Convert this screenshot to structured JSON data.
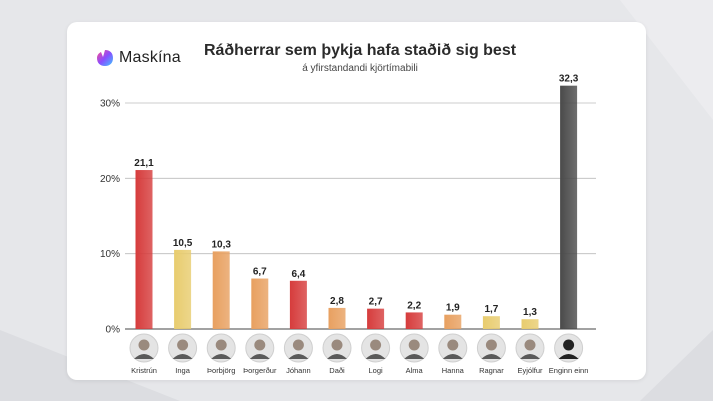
{
  "header": {
    "brand": "Maskína",
    "title": "Ráðherrar sem þykja hafa staðið sig best",
    "subtitle": "á yfirstandandi kjörtímabili"
  },
  "chart_data": {
    "type": "bar",
    "title": "Ráðherrar sem þykja hafa staðið sig best",
    "subtitle": "á yfirstandandi kjörtímabili",
    "xlabel": "",
    "ylabel": "",
    "ylim": [
      0,
      30
    ],
    "yticks": [
      0,
      10,
      20,
      30
    ],
    "ytick_labels": [
      "0%",
      "10%",
      "20%",
      "30%"
    ],
    "grid": true,
    "categories": [
      "Kristrún",
      "Inga",
      "Þorbjörg",
      "Þorgerður",
      "Jóhann",
      "Daði",
      "Logi",
      "Alma",
      "Hanna",
      "Ragnar",
      "Eyjólfur",
      "Enginn einn"
    ],
    "values": [
      21.1,
      10.5,
      10.3,
      6.7,
      6.4,
      2.8,
      2.7,
      2.2,
      1.9,
      1.7,
      1.3,
      32.3
    ],
    "value_labels": [
      "21,1",
      "10,5",
      "10,3",
      "6,7",
      "6,4",
      "2,8",
      "2,7",
      "2,2",
      "1,9",
      "1,7",
      "1,3",
      "32,3"
    ],
    "colors": [
      "#d63c3c",
      "#e8cc6e",
      "#e8a060",
      "#e8a060",
      "#d63c3c",
      "#e8a060",
      "#d63c3c",
      "#d63c3c",
      "#e8a060",
      "#e8cc6e",
      "#e8cc6e",
      "#4a4a4a"
    ]
  }
}
